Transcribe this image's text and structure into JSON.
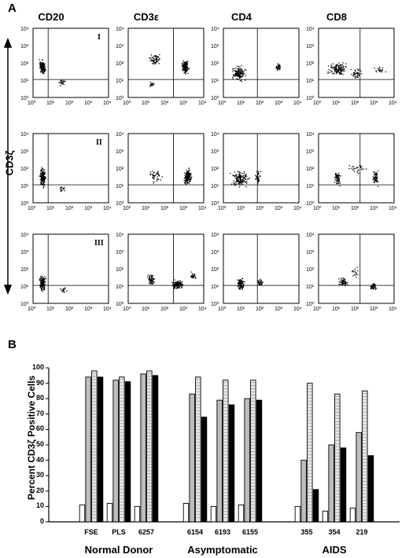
{
  "panel_a": {
    "letter": "A",
    "columns": [
      "CD20",
      "CD3ε",
      "CD4",
      "CD8"
    ],
    "y_axis_label": "CD3ζ",
    "row_labels": [
      "I",
      "II",
      "III"
    ],
    "axis_tick_labels": [
      "10⁰",
      "10¹",
      "10²",
      "10³",
      "10⁴"
    ]
  },
  "panel_b": {
    "letter": "B"
  },
  "chart_data": {
    "type": "bar",
    "ylabel": "Percent CD3ζ Positive Cells",
    "ylim": [
      0,
      100
    ],
    "yticks": [
      0,
      10,
      20,
      30,
      40,
      50,
      60,
      70,
      80,
      90,
      100
    ],
    "groups": [
      {
        "name": "Normal Donor",
        "categories": [
          "FSE",
          "PLS",
          "6257"
        ]
      },
      {
        "name": "Asymptomatic",
        "categories": [
          "6154",
          "6193",
          "6155"
        ]
      },
      {
        "name": "AIDS",
        "categories": [
          "355",
          "354",
          "219"
        ]
      }
    ],
    "categories": [
      "FSE",
      "PLS",
      "6257",
      "6154",
      "6193",
      "6155",
      "355",
      "354",
      "219"
    ],
    "series": [
      {
        "values": [
          11,
          12,
          10,
          12,
          10,
          11,
          10,
          7,
          9
        ],
        "fill": "#ffffff"
      },
      {
        "values": [
          94,
          92,
          96,
          83,
          79,
          80,
          40,
          50,
          58
        ],
        "fill": "#bdbdbd"
      },
      {
        "values": [
          98,
          94,
          98,
          94,
          92,
          92,
          90,
          83,
          85
        ],
        "fill": "#e8e8e8"
      },
      {
        "values": [
          94,
          91,
          95,
          68,
          76,
          79,
          21,
          48,
          43
        ],
        "fill": "#000000"
      }
    ]
  }
}
